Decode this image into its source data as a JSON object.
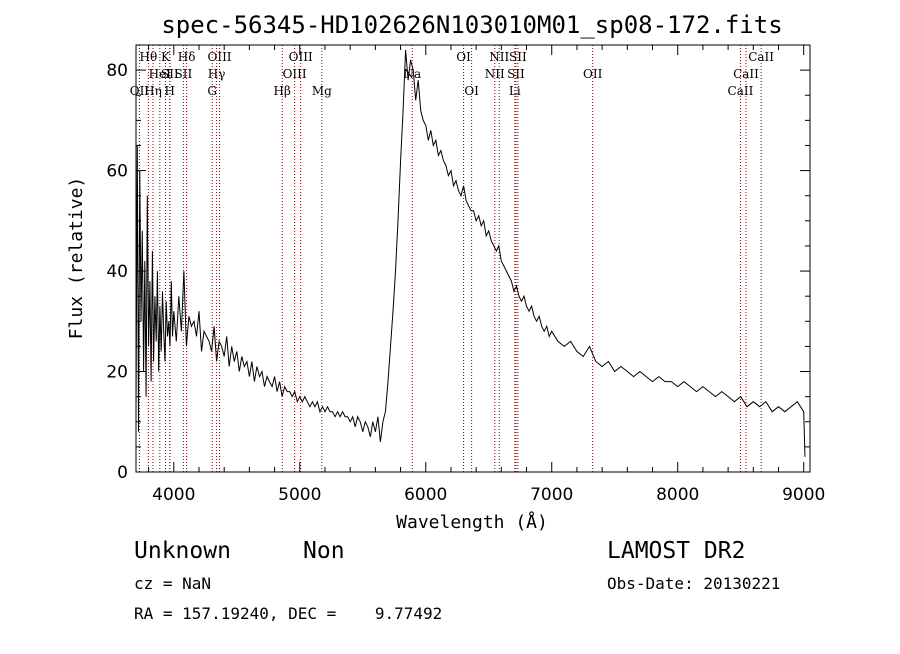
{
  "chart_data": {
    "type": "line",
    "title": "spec-56345-HD102626N103010M01_sp08-172.fits",
    "xlabel": "Wavelength (Å)",
    "ylabel": "Flux (relative)",
    "xlim": [
      3700,
      9050
    ],
    "ylim": [
      0,
      85
    ],
    "xticks": [
      4000,
      5000,
      6000,
      7000,
      8000,
      9000
    ],
    "yticks": [
      0,
      20,
      40,
      60,
      80
    ],
    "grid": false,
    "legend": "none",
    "colors": {
      "spectrum": "#000000",
      "lines": "#8b0000"
    },
    "series": [
      {
        "points": [
          [
            3700,
            12
          ],
          [
            3710,
            65
          ],
          [
            3720,
            8
          ],
          [
            3730,
            60
          ],
          [
            3740,
            30
          ],
          [
            3750,
            48
          ],
          [
            3760,
            20
          ],
          [
            3770,
            42
          ],
          [
            3780,
            15
          ],
          [
            3790,
            55
          ],
          [
            3800,
            25
          ],
          [
            3810,
            38
          ],
          [
            3820,
            18
          ],
          [
            3830,
            44
          ],
          [
            3840,
            22
          ],
          [
            3850,
            35
          ],
          [
            3860,
            26
          ],
          [
            3870,
            40
          ],
          [
            3880,
            20
          ],
          [
            3890,
            33
          ],
          [
            3900,
            24
          ],
          [
            3910,
            36
          ],
          [
            3920,
            28
          ],
          [
            3930,
            22
          ],
          [
            3940,
            34
          ],
          [
            3950,
            27
          ],
          [
            3960,
            30
          ],
          [
            3970,
            25
          ],
          [
            3980,
            38
          ],
          [
            3990,
            27
          ],
          [
            4000,
            32
          ],
          [
            4020,
            26
          ],
          [
            4040,
            35
          ],
          [
            4060,
            28
          ],
          [
            4080,
            40
          ],
          [
            4100,
            25
          ],
          [
            4120,
            31
          ],
          [
            4140,
            29
          ],
          [
            4160,
            30
          ],
          [
            4180,
            27
          ],
          [
            4200,
            32
          ],
          [
            4220,
            24
          ],
          [
            4240,
            28
          ],
          [
            4260,
            27
          ],
          [
            4280,
            26
          ],
          [
            4300,
            24
          ],
          [
            4320,
            29
          ],
          [
            4340,
            22
          ],
          [
            4360,
            26
          ],
          [
            4380,
            25
          ],
          [
            4400,
            23
          ],
          [
            4420,
            27
          ],
          [
            4440,
            21
          ],
          [
            4460,
            25
          ],
          [
            4480,
            22
          ],
          [
            4500,
            24
          ],
          [
            4520,
            20
          ],
          [
            4540,
            23
          ],
          [
            4560,
            21
          ],
          [
            4580,
            22
          ],
          [
            4600,
            19
          ],
          [
            4620,
            22
          ],
          [
            4640,
            18
          ],
          [
            4660,
            21
          ],
          [
            4680,
            19
          ],
          [
            4700,
            20
          ],
          [
            4720,
            17
          ],
          [
            4740,
            19
          ],
          [
            4760,
            18
          ],
          [
            4780,
            17
          ],
          [
            4800,
            19
          ],
          [
            4820,
            16
          ],
          [
            4840,
            18
          ],
          [
            4860,
            15
          ],
          [
            4880,
            17
          ],
          [
            4900,
            16
          ],
          [
            4920,
            16
          ],
          [
            4940,
            15
          ],
          [
            4960,
            16
          ],
          [
            4980,
            14
          ],
          [
            5000,
            15
          ],
          [
            5020,
            14
          ],
          [
            5040,
            15
          ],
          [
            5060,
            14
          ],
          [
            5080,
            13
          ],
          [
            5100,
            14
          ],
          [
            5120,
            13
          ],
          [
            5140,
            14
          ],
          [
            5160,
            12
          ],
          [
            5180,
            13
          ],
          [
            5200,
            12
          ],
          [
            5220,
            13
          ],
          [
            5240,
            12
          ],
          [
            5260,
            12
          ],
          [
            5280,
            11
          ],
          [
            5300,
            12
          ],
          [
            5320,
            11
          ],
          [
            5340,
            12
          ],
          [
            5360,
            11
          ],
          [
            5380,
            11
          ],
          [
            5400,
            10
          ],
          [
            5420,
            11
          ],
          [
            5440,
            9
          ],
          [
            5460,
            11
          ],
          [
            5480,
            10
          ],
          [
            5500,
            8
          ],
          [
            5520,
            10
          ],
          [
            5540,
            9
          ],
          [
            5560,
            7
          ],
          [
            5580,
            10
          ],
          [
            5600,
            8
          ],
          [
            5620,
            11
          ],
          [
            5640,
            6
          ],
          [
            5660,
            10
          ],
          [
            5680,
            12
          ],
          [
            5700,
            18
          ],
          [
            5720,
            25
          ],
          [
            5740,
            32
          ],
          [
            5760,
            40
          ],
          [
            5780,
            50
          ],
          [
            5800,
            62
          ],
          [
            5820,
            72
          ],
          [
            5840,
            84
          ],
          [
            5860,
            78
          ],
          [
            5880,
            82
          ],
          [
            5900,
            80
          ],
          [
            5920,
            74
          ],
          [
            5940,
            78
          ],
          [
            5960,
            72
          ],
          [
            5980,
            70
          ],
          [
            6000,
            69
          ],
          [
            6020,
            66
          ],
          [
            6040,
            68
          ],
          [
            6060,
            65
          ],
          [
            6080,
            66
          ],
          [
            6100,
            63
          ],
          [
            6120,
            64
          ],
          [
            6140,
            62
          ],
          [
            6160,
            61
          ],
          [
            6180,
            59
          ],
          [
            6200,
            60
          ],
          [
            6220,
            57
          ],
          [
            6240,
            58
          ],
          [
            6260,
            56
          ],
          [
            6280,
            55
          ],
          [
            6300,
            57
          ],
          [
            6320,
            54
          ],
          [
            6340,
            53
          ],
          [
            6360,
            52
          ],
          [
            6380,
            52
          ],
          [
            6400,
            50
          ],
          [
            6420,
            51
          ],
          [
            6440,
            49
          ],
          [
            6460,
            50
          ],
          [
            6480,
            47
          ],
          [
            6500,
            48
          ],
          [
            6520,
            46
          ],
          [
            6540,
            45
          ],
          [
            6560,
            44
          ],
          [
            6580,
            45
          ],
          [
            6600,
            42
          ],
          [
            6620,
            41
          ],
          [
            6640,
            40
          ],
          [
            6660,
            39
          ],
          [
            6680,
            38
          ],
          [
            6700,
            36
          ],
          [
            6720,
            37
          ],
          [
            6740,
            35
          ],
          [
            6760,
            34
          ],
          [
            6780,
            35
          ],
          [
            6800,
            33
          ],
          [
            6820,
            32
          ],
          [
            6840,
            33
          ],
          [
            6860,
            31
          ],
          [
            6880,
            30
          ],
          [
            6900,
            31
          ],
          [
            6920,
            29
          ],
          [
            6940,
            28
          ],
          [
            6960,
            29
          ],
          [
            6980,
            27
          ],
          [
            7000,
            28
          ],
          [
            7050,
            26
          ],
          [
            7100,
            25
          ],
          [
            7150,
            26
          ],
          [
            7200,
            24
          ],
          [
            7250,
            23
          ],
          [
            7300,
            25
          ],
          [
            7350,
            22
          ],
          [
            7400,
            21
          ],
          [
            7450,
            22
          ],
          [
            7500,
            20
          ],
          [
            7550,
            21
          ],
          [
            7600,
            20
          ],
          [
            7650,
            19
          ],
          [
            7700,
            20
          ],
          [
            7750,
            19
          ],
          [
            7800,
            18
          ],
          [
            7850,
            19
          ],
          [
            7900,
            18
          ],
          [
            7950,
            18
          ],
          [
            8000,
            17
          ],
          [
            8050,
            18
          ],
          [
            8100,
            17
          ],
          [
            8150,
            16
          ],
          [
            8200,
            17
          ],
          [
            8250,
            16
          ],
          [
            8300,
            15
          ],
          [
            8350,
            16
          ],
          [
            8400,
            15
          ],
          [
            8450,
            14
          ],
          [
            8500,
            15
          ],
          [
            8550,
            13
          ],
          [
            8600,
            14
          ],
          [
            8650,
            13
          ],
          [
            8700,
            14
          ],
          [
            8750,
            12
          ],
          [
            8800,
            13
          ],
          [
            8850,
            12
          ],
          [
            8900,
            13
          ],
          [
            8950,
            14
          ],
          [
            9000,
            12
          ],
          [
            9010,
            3
          ]
        ]
      }
    ],
    "line_markers": [
      {
        "label": "OII",
        "x": 3727,
        "row": 3
      },
      {
        "label": "Hθ",
        "x": 3798,
        "row": 1
      },
      {
        "label": "Hη",
        "x": 3835,
        "row": 3
      },
      {
        "label": "HeI",
        "x": 3889,
        "row": 2
      },
      {
        "label": "K",
        "x": 3934,
        "row": 1
      },
      {
        "label": "SII",
        "x": 3969,
        "row": 2
      },
      {
        "label": "H",
        "x": 3968,
        "row": 3
      },
      {
        "label": "Hδ",
        "x": 4102,
        "row": 1
      },
      {
        "label": "SII",
        "x": 4076,
        "row": 2
      },
      {
        "label": "OIII",
        "x": 4363,
        "row": 1
      },
      {
        "label": "Hγ",
        "x": 4340,
        "row": 2
      },
      {
        "label": "G",
        "x": 4305,
        "row": 3
      },
      {
        "label": "Hβ",
        "x": 4861,
        "row": 3
      },
      {
        "label": "OIII",
        "x": 5007,
        "row": 1
      },
      {
        "label": "OIII",
        "x": 4959,
        "row": 2
      },
      {
        "label": "Mg",
        "x": 5175,
        "row": 3
      },
      {
        "label": "Na",
        "x": 5893,
        "row": 2
      },
      {
        "label": "OI",
        "x": 6300,
        "row": 1
      },
      {
        "label": "OI",
        "x": 6364,
        "row": 3
      },
      {
        "label": "NII",
        "x": 6583,
        "row": 1
      },
      {
        "label": "NII",
        "x": 6548,
        "row": 2
      },
      {
        "label": "SII",
        "x": 6731,
        "row": 1
      },
      {
        "label": "SII",
        "x": 6716,
        "row": 2
      },
      {
        "label": "Li",
        "x": 6707,
        "row": 3
      },
      {
        "label": "OII",
        "x": 7325,
        "row": 2
      },
      {
        "label": "CaII",
        "x": 8662,
        "row": 1
      },
      {
        "label": "CaII",
        "x": 8542,
        "row": 2
      },
      {
        "label": "CaII",
        "x": 8498,
        "row": 3
      }
    ]
  },
  "info": {
    "object_class": "Unknown",
    "subclass": "Non",
    "survey": "LAMOST DR2",
    "cz": "cz = NaN",
    "obs_date": "Obs-Date: 20130221",
    "coords": "RA = 157.19240, DEC =    9.77492"
  }
}
